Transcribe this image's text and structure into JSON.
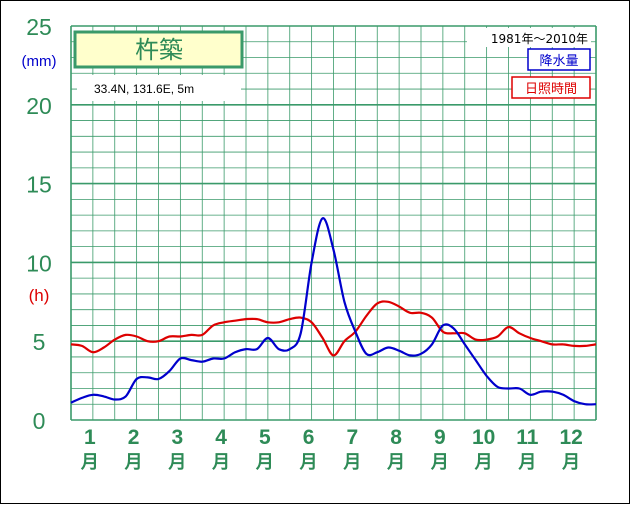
{
  "chart_data": {
    "type": "line",
    "title": "杵築",
    "location": "33.4N, 131.6E, 5m",
    "period": "1981年〜2010年",
    "unit_precip": "(mm)",
    "unit_sun": "(h)",
    "ylim": [
      0,
      25
    ],
    "y_ticks": [
      "0",
      "5",
      "10",
      "15",
      "20",
      "25"
    ],
    "x_months": [
      "1",
      "2",
      "3",
      "4",
      "5",
      "6",
      "7",
      "8",
      "9",
      "10",
      "11",
      "12"
    ],
    "x_suffix": "月",
    "legend_position": "top-right",
    "colors": {
      "grid": "#3a9a6a",
      "precip": "#0000cc",
      "sun": "#dd0000",
      "title_box_border": "#3a9a6a",
      "title_box_fill": "#ffffcc",
      "tick_text": "#2e8b57"
    },
    "series": [
      {
        "name": "降水量",
        "color": "#0000cc",
        "x": [
          0.0,
          0.25,
          0.5,
          0.75,
          1.0,
          1.25,
          1.5,
          1.75,
          2.0,
          2.25,
          2.5,
          2.75,
          3.0,
          3.25,
          3.5,
          3.75,
          4.0,
          4.25,
          4.5,
          4.75,
          5.0,
          5.25,
          5.5,
          5.75,
          6.0,
          6.25,
          6.5,
          6.75,
          7.0,
          7.25,
          7.5,
          7.75,
          8.0,
          8.25,
          8.5,
          8.75,
          9.0,
          9.25,
          9.5,
          9.75,
          10.0,
          10.25,
          10.5,
          10.75,
          11.0,
          11.25,
          11.5,
          11.75,
          12.0
        ],
        "values": [
          1.1,
          1.4,
          1.6,
          1.5,
          1.3,
          1.5,
          2.6,
          2.7,
          2.6,
          3.1,
          3.9,
          3.8,
          3.7,
          3.9,
          3.9,
          4.3,
          4.5,
          4.5,
          5.2,
          4.5,
          4.5,
          5.5,
          10.0,
          12.8,
          10.8,
          7.5,
          5.6,
          4.2,
          4.3,
          4.6,
          4.4,
          4.1,
          4.2,
          4.8,
          6.0,
          5.8,
          4.8,
          3.8,
          2.8,
          2.1,
          2.0,
          2.0,
          1.6,
          1.8,
          1.8,
          1.6,
          1.2,
          1.0,
          1.0
        ]
      },
      {
        "name": "日照時間",
        "color": "#dd0000",
        "x": [
          0.0,
          0.25,
          0.5,
          0.75,
          1.0,
          1.25,
          1.5,
          1.75,
          2.0,
          2.25,
          2.5,
          2.75,
          3.0,
          3.25,
          3.5,
          3.75,
          4.0,
          4.25,
          4.5,
          4.75,
          5.0,
          5.25,
          5.5,
          5.75,
          6.0,
          6.25,
          6.5,
          6.75,
          7.0,
          7.25,
          7.5,
          7.75,
          8.0,
          8.25,
          8.5,
          8.75,
          9.0,
          9.25,
          9.5,
          9.75,
          10.0,
          10.25,
          10.5,
          10.75,
          11.0,
          11.25,
          11.5,
          11.75,
          12.0
        ],
        "values": [
          4.8,
          4.7,
          4.3,
          4.6,
          5.1,
          5.4,
          5.3,
          5.0,
          5.0,
          5.3,
          5.3,
          5.4,
          5.4,
          6.0,
          6.2,
          6.3,
          6.4,
          6.4,
          6.2,
          6.2,
          6.4,
          6.5,
          6.2,
          5.2,
          4.1,
          5.0,
          5.6,
          6.6,
          7.4,
          7.5,
          7.2,
          6.8,
          6.8,
          6.5,
          5.6,
          5.5,
          5.5,
          5.1,
          5.1,
          5.3,
          5.9,
          5.5,
          5.2,
          5.0,
          4.8,
          4.8,
          4.7,
          4.7,
          4.8
        ]
      }
    ]
  }
}
